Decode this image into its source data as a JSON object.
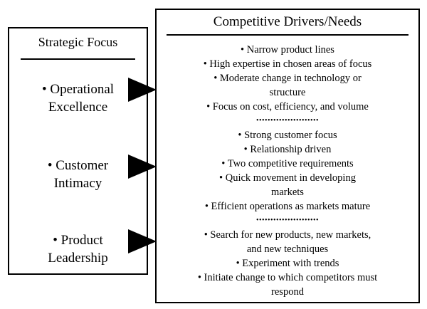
{
  "strategic_focus": {
    "title": "Strategic Focus",
    "items": [
      {
        "lines": [
          "• Operational",
          "Excellence"
        ]
      },
      {
        "lines": [
          "• Customer",
          "Intimacy"
        ]
      },
      {
        "lines": [
          "• Product",
          "Leadership"
        ]
      }
    ]
  },
  "competitive_drivers": {
    "title": "Competitive Drivers/Needs",
    "groups": [
      {
        "lines": [
          "• Narrow product lines",
          "• High expertise in chosen areas of focus",
          "• Moderate change in technology or",
          "structure",
          "• Focus on cost, efficiency, and volume"
        ]
      },
      {
        "lines": [
          "• Strong customer focus",
          "• Relationship driven",
          "• Two competitive requirements",
          "• Quick movement in developing",
          "markets",
          "• Efficient operations as markets mature"
        ]
      },
      {
        "lines": [
          "• Search for new products, new markets,",
          "and new techniques",
          "• Experiment with trends",
          "• Initiate change to which competitors must",
          "respond"
        ]
      }
    ],
    "separator": "••••••••••••••••••••••"
  }
}
